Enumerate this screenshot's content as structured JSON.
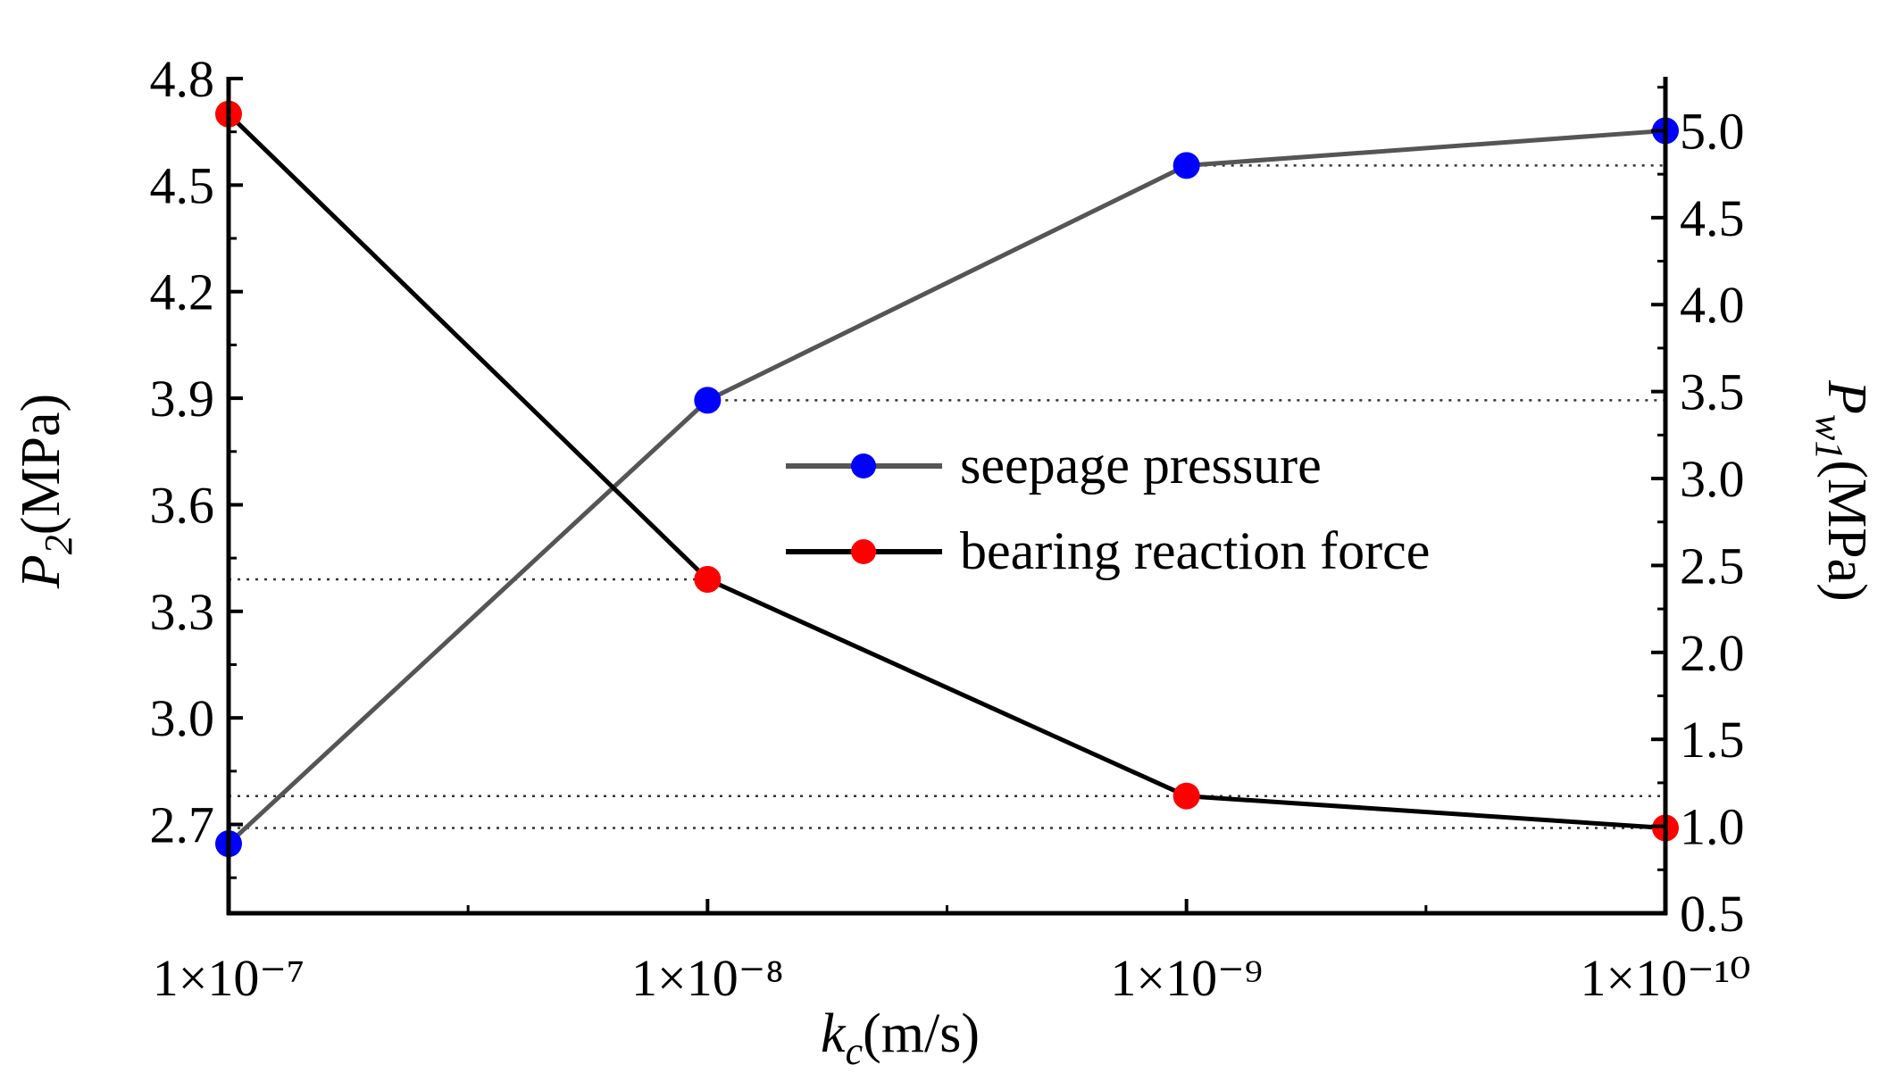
{
  "chart_data": {
    "type": "line",
    "title": "",
    "xlabel": {
      "main": "k",
      "sub": "c",
      "unit": "(m/s)"
    },
    "ylabel_left": {
      "main": "P",
      "sub": "2",
      "unit": "(MPa)"
    },
    "ylabel_right": {
      "main": "P",
      "sub": "w1",
      "unit": "(MPa)"
    },
    "categories": [
      "1×10⁻⁷",
      "1×10⁻⁸",
      "1×10⁻⁹",
      "1×10⁻¹⁰"
    ],
    "y_left": {
      "min": 2.45,
      "max": 4.8,
      "ticks": [
        "2.7",
        "3.0",
        "3.3",
        "3.6",
        "3.9",
        "4.2",
        "4.5",
        "4.8"
      ]
    },
    "y_right": {
      "min": 0.5,
      "max": 5.3,
      "ticks": [
        "0.5",
        "1.0",
        "1.5",
        "2.0",
        "2.5",
        "3.0",
        "3.5",
        "4.0",
        "4.5",
        "5.0"
      ]
    },
    "series": [
      {
        "name": "seepage pressure",
        "axis": "right",
        "values": [
          0.9,
          3.45,
          4.8,
          5.0
        ],
        "line_color": "#555555",
        "marker_color": "#0000ff"
      },
      {
        "name": "bearing reaction force",
        "axis": "left",
        "values": [
          4.7,
          3.39,
          2.78,
          2.69
        ],
        "line_color": "#000000",
        "marker_color": "#ff0000"
      }
    ],
    "reference_lines": [
      {
        "axis": "right",
        "value": 4.8,
        "from": 2,
        "to": 3
      },
      {
        "axis": "right",
        "value": 3.45,
        "from": 1,
        "to": 3
      },
      {
        "axis": "left",
        "value": 3.39,
        "from": 0,
        "to": 1
      },
      {
        "axis": "left",
        "value": 2.78,
        "from": 0,
        "to": 3
      },
      {
        "axis": "left",
        "value": 2.69,
        "from": 0,
        "to": 3
      }
    ],
    "legend_position": "center-right"
  }
}
